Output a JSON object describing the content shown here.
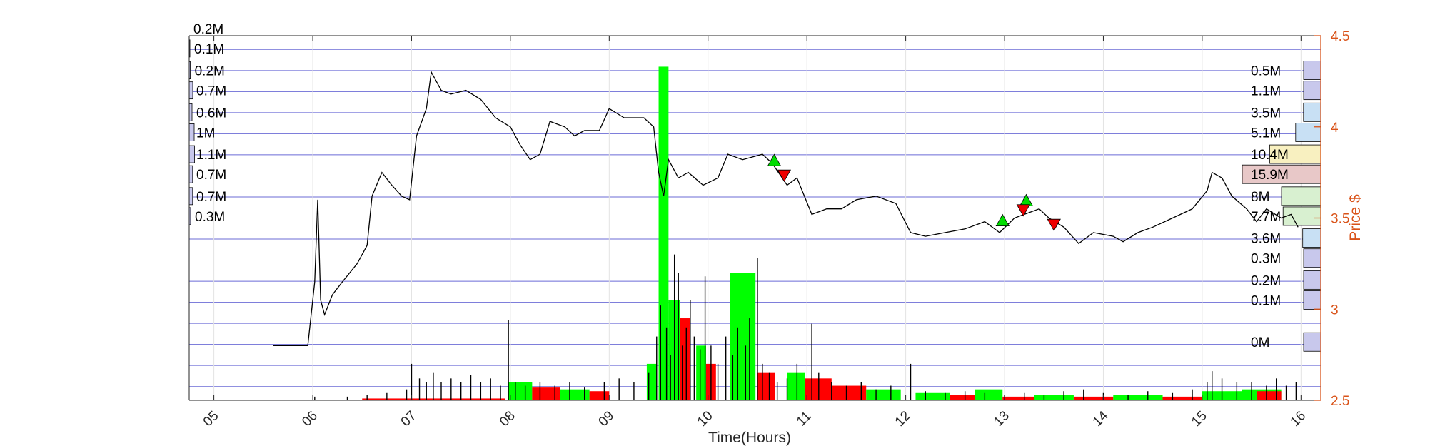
{
  "chart_data": {
    "type": "line",
    "xlabel": "Time(Hours)",
    "ylabel": "Price $",
    "x_ticks": [
      "05",
      "06",
      "07",
      "08",
      "09",
      "10",
      "11",
      "12",
      "13",
      "14",
      "15",
      "16"
    ],
    "x_range": [
      4.75,
      16.2
    ],
    "y_ticks": [
      2.5,
      3,
      3.5,
      4,
      4.5
    ],
    "y_range": [
      2.5,
      4.5
    ],
    "grid": true,
    "colors": {
      "price_axis": "#d95319",
      "price_line": "#000000",
      "buy_volume": "#00ff00",
      "sell_volume": "#ff0000",
      "grid": "#6b6bd6"
    },
    "price_series": [
      [
        5.6,
        2.8
      ],
      [
        5.95,
        2.8
      ],
      [
        6.02,
        3.15
      ],
      [
        6.05,
        3.6
      ],
      [
        6.08,
        3.05
      ],
      [
        6.12,
        2.97
      ],
      [
        6.2,
        3.08
      ],
      [
        6.3,
        3.15
      ],
      [
        6.45,
        3.25
      ],
      [
        6.55,
        3.35
      ],
      [
        6.6,
        3.62
      ],
      [
        6.7,
        3.75
      ],
      [
        6.8,
        3.68
      ],
      [
        6.9,
        3.62
      ],
      [
        6.98,
        3.6
      ],
      [
        7.05,
        3.95
      ],
      [
        7.15,
        4.1
      ],
      [
        7.2,
        4.3
      ],
      [
        7.3,
        4.2
      ],
      [
        7.4,
        4.18
      ],
      [
        7.55,
        4.2
      ],
      [
        7.7,
        4.15
      ],
      [
        7.85,
        4.05
      ],
      [
        8.0,
        4.0
      ],
      [
        8.1,
        3.9
      ],
      [
        8.2,
        3.82
      ],
      [
        8.3,
        3.85
      ],
      [
        8.4,
        4.03
      ],
      [
        8.55,
        4.0
      ],
      [
        8.65,
        3.95
      ],
      [
        8.75,
        3.98
      ],
      [
        8.9,
        3.98
      ],
      [
        9.0,
        4.1
      ],
      [
        9.15,
        4.05
      ],
      [
        9.35,
        4.05
      ],
      [
        9.45,
        4.0
      ],
      [
        9.5,
        3.75
      ],
      [
        9.55,
        3.62
      ],
      [
        9.6,
        3.82
      ],
      [
        9.7,
        3.72
      ],
      [
        9.8,
        3.75
      ],
      [
        9.95,
        3.68
      ],
      [
        10.1,
        3.72
      ],
      [
        10.2,
        3.85
      ],
      [
        10.35,
        3.82
      ],
      [
        10.55,
        3.85
      ],
      [
        10.65,
        3.8
      ],
      [
        10.8,
        3.68
      ],
      [
        10.9,
        3.72
      ],
      [
        11.05,
        3.52
      ],
      [
        11.2,
        3.55
      ],
      [
        11.35,
        3.55
      ],
      [
        11.5,
        3.6
      ],
      [
        11.7,
        3.62
      ],
      [
        11.9,
        3.58
      ],
      [
        12.05,
        3.42
      ],
      [
        12.2,
        3.4
      ],
      [
        12.4,
        3.42
      ],
      [
        12.6,
        3.44
      ],
      [
        12.8,
        3.48
      ],
      [
        12.95,
        3.42
      ],
      [
        13.1,
        3.5
      ],
      [
        13.2,
        3.52
      ],
      [
        13.35,
        3.55
      ],
      [
        13.45,
        3.5
      ],
      [
        13.6,
        3.45
      ],
      [
        13.75,
        3.36
      ],
      [
        13.9,
        3.42
      ],
      [
        14.1,
        3.4
      ],
      [
        14.2,
        3.37
      ],
      [
        14.35,
        3.42
      ],
      [
        14.5,
        3.45
      ],
      [
        14.7,
        3.5
      ],
      [
        14.9,
        3.55
      ],
      [
        15.05,
        3.65
      ],
      [
        15.1,
        3.75
      ],
      [
        15.2,
        3.72
      ],
      [
        15.3,
        3.62
      ],
      [
        15.45,
        3.55
      ],
      [
        15.55,
        3.48
      ],
      [
        15.65,
        3.55
      ],
      [
        15.8,
        3.5
      ],
      [
        15.9,
        3.52
      ],
      [
        15.97,
        3.45
      ]
    ],
    "buy_signals": [
      [
        10.67,
        3.81
      ],
      [
        12.98,
        3.48
      ],
      [
        13.22,
        3.59
      ]
    ],
    "sell_signals": [
      [
        10.77,
        3.74
      ],
      [
        13.19,
        3.55
      ],
      [
        13.5,
        3.47
      ]
    ],
    "volume_blocks": [
      {
        "x": [
          9.38,
          9.48
        ],
        "y": 2.7,
        "side": "buy"
      },
      {
        "x": [
          9.5,
          9.6
        ],
        "y": 4.33,
        "side": "buy"
      },
      {
        "x": [
          9.6,
          9.72
        ],
        "y": 3.05,
        "side": "buy"
      },
      {
        "x": [
          9.72,
          9.82
        ],
        "y": 2.95,
        "side": "sell"
      },
      {
        "x": [
          9.88,
          9.98
        ],
        "y": 2.8,
        "side": "buy"
      },
      {
        "x": [
          9.98,
          10.08
        ],
        "y": 2.7,
        "side": "sell"
      },
      {
        "x": [
          10.22,
          10.48
        ],
        "y": 3.2,
        "side": "buy"
      },
      {
        "x": [
          10.5,
          10.68
        ],
        "y": 2.65,
        "side": "sell"
      },
      {
        "x": [
          10.8,
          10.98
        ],
        "y": 2.65,
        "side": "buy"
      },
      {
        "x": [
          10.98,
          11.25
        ],
        "y": 2.62,
        "side": "sell"
      },
      {
        "x": [
          11.25,
          11.6
        ],
        "y": 2.58,
        "side": "sell"
      },
      {
        "x": [
          11.6,
          11.95
        ],
        "y": 2.56,
        "side": "buy"
      },
      {
        "x": [
          7.98,
          8.22
        ],
        "y": 2.6,
        "side": "buy"
      },
      {
        "x": [
          8.22,
          8.5
        ],
        "y": 2.57,
        "side": "sell"
      },
      {
        "x": [
          8.5,
          8.8
        ],
        "y": 2.56,
        "side": "buy"
      },
      {
        "x": [
          8.8,
          9.0
        ],
        "y": 2.55,
        "side": "sell"
      },
      {
        "x": [
          12.1,
          12.45
        ],
        "y": 2.54,
        "side": "buy"
      },
      {
        "x": [
          12.45,
          12.7
        ],
        "y": 2.53,
        "side": "sell"
      },
      {
        "x": [
          12.7,
          12.98
        ],
        "y": 2.56,
        "side": "buy"
      },
      {
        "x": [
          12.98,
          13.3
        ],
        "y": 2.52,
        "side": "sell"
      },
      {
        "x": [
          13.3,
          13.7
        ],
        "y": 2.53,
        "side": "buy"
      },
      {
        "x": [
          13.7,
          14.1
        ],
        "y": 2.52,
        "side": "sell"
      },
      {
        "x": [
          14.1,
          14.6
        ],
        "y": 2.53,
        "side": "buy"
      },
      {
        "x": [
          14.6,
          15.0
        ],
        "y": 2.52,
        "side": "sell"
      },
      {
        "x": [
          15.0,
          15.4
        ],
        "y": 2.55,
        "side": "buy"
      },
      {
        "x": [
          15.4,
          15.8
        ],
        "y": 2.56,
        "side": "buy"
      },
      {
        "x": [
          15.55,
          15.8
        ],
        "y": 2.55,
        "side": "sell"
      },
      {
        "x": [
          6.5,
          7.0
        ],
        "y": 2.51,
        "side": "sell"
      },
      {
        "x": [
          7.0,
          7.95
        ],
        "y": 2.51,
        "side": "sell"
      }
    ],
    "volume_spikes": [
      [
        6.02,
        2.52
      ],
      [
        6.35,
        2.52
      ],
      [
        6.55,
        2.53
      ],
      [
        6.75,
        2.54
      ],
      [
        6.95,
        2.56
      ],
      [
        7.0,
        2.7
      ],
      [
        7.08,
        2.62
      ],
      [
        7.15,
        2.6
      ],
      [
        7.22,
        2.65
      ],
      [
        7.3,
        2.6
      ],
      [
        7.4,
        2.62
      ],
      [
        7.5,
        2.6
      ],
      [
        7.6,
        2.64
      ],
      [
        7.7,
        2.6
      ],
      [
        7.8,
        2.62
      ],
      [
        7.9,
        2.58
      ],
      [
        7.98,
        2.94
      ],
      [
        8.05,
        2.6
      ],
      [
        8.15,
        2.58
      ],
      [
        8.3,
        2.6
      ],
      [
        8.45,
        2.58
      ],
      [
        8.6,
        2.6
      ],
      [
        8.75,
        2.57
      ],
      [
        8.95,
        2.6
      ],
      [
        9.1,
        2.62
      ],
      [
        9.25,
        2.6
      ],
      [
        9.4,
        2.65
      ],
      [
        9.48,
        2.85
      ],
      [
        9.52,
        3.02
      ],
      [
        9.58,
        2.9
      ],
      [
        9.62,
        2.75
      ],
      [
        9.66,
        3.3
      ],
      [
        9.7,
        3.2
      ],
      [
        9.74,
        2.8
      ],
      [
        9.78,
        2.9
      ],
      [
        9.82,
        3.05
      ],
      [
        9.86,
        2.85
      ],
      [
        9.92,
        2.78
      ],
      [
        9.97,
        3.18
      ],
      [
        10.03,
        2.8
      ],
      [
        10.1,
        2.7
      ],
      [
        10.18,
        2.85
      ],
      [
        10.25,
        2.75
      ],
      [
        10.3,
        2.9
      ],
      [
        10.38,
        2.8
      ],
      [
        10.42,
        2.95
      ],
      [
        10.5,
        3.28
      ],
      [
        10.55,
        2.7
      ],
      [
        10.62,
        2.65
      ],
      [
        10.7,
        2.6
      ],
      [
        10.8,
        2.62
      ],
      [
        10.9,
        2.7
      ],
      [
        11.05,
        2.92
      ],
      [
        11.12,
        2.65
      ],
      [
        11.25,
        2.6
      ],
      [
        11.4,
        2.58
      ],
      [
        11.55,
        2.6
      ],
      [
        11.7,
        2.56
      ],
      [
        11.85,
        2.58
      ],
      [
        12.05,
        2.7
      ],
      [
        12.2,
        2.55
      ],
      [
        12.4,
        2.54
      ],
      [
        12.6,
        2.55
      ],
      [
        12.8,
        2.54
      ],
      [
        13.0,
        2.53
      ],
      [
        13.2,
        2.54
      ],
      [
        13.4,
        2.53
      ],
      [
        13.6,
        2.55
      ],
      [
        13.8,
        2.56
      ],
      [
        14.0,
        2.54
      ],
      [
        14.25,
        2.53
      ],
      [
        14.45,
        2.55
      ],
      [
        14.7,
        2.54
      ],
      [
        14.9,
        2.56
      ],
      [
        15.05,
        2.6
      ],
      [
        15.1,
        2.66
      ],
      [
        15.2,
        2.62
      ],
      [
        15.35,
        2.6
      ],
      [
        15.5,
        2.6
      ],
      [
        15.65,
        2.58
      ],
      [
        15.75,
        2.62
      ],
      [
        15.85,
        2.58
      ],
      [
        15.95,
        2.6
      ]
    ],
    "volume_profile_left": [
      {
        "label": "0.2M",
        "y": 4.54,
        "bar": 0.0
      },
      {
        "label": "0.1M",
        "y": 4.43,
        "bar": 0.05
      },
      {
        "label": "0.2M",
        "y": 4.31,
        "bar": 0.08
      },
      {
        "label": "0.7M",
        "y": 4.2,
        "bar": 0.25
      },
      {
        "label": "0.6M",
        "y": 4.08,
        "bar": 0.2
      },
      {
        "label": "1M",
        "y": 3.97,
        "bar": 0.35
      },
      {
        "label": "1.1M",
        "y": 3.85,
        "bar": 0.38
      },
      {
        "label": "0.7M",
        "y": 3.74,
        "bar": 0.24
      },
      {
        "label": "0.7M",
        "y": 3.62,
        "bar": 0.24
      },
      {
        "label": "0.3M",
        "y": 3.51,
        "bar": 0.1
      }
    ],
    "volume_profile_right": [
      {
        "label": "0.5M",
        "y": 4.31,
        "bar": 0.03,
        "color": "#c8c8ec"
      },
      {
        "label": "1.1M",
        "y": 4.2,
        "bar": 0.07,
        "color": "#c8c8ec"
      },
      {
        "label": "3.5M",
        "y": 4.08,
        "bar": 0.22,
        "color": "#c8e0f4"
      },
      {
        "label": "5.1M",
        "y": 3.97,
        "bar": 0.32,
        "color": "#c8e0f4"
      },
      {
        "label": "10.4M",
        "y": 3.85,
        "bar": 0.65,
        "color": "#f8f0c0"
      },
      {
        "label": "15.9M",
        "y": 3.74,
        "bar": 1.0,
        "color": "#e8c8c8"
      },
      {
        "label": "8M",
        "y": 3.62,
        "bar": 0.5,
        "color": "#d8f0d0"
      },
      {
        "label": "7.7M",
        "y": 3.51,
        "bar": 0.48,
        "color": "#d8f0d0"
      },
      {
        "label": "3.6M",
        "y": 3.39,
        "bar": 0.23,
        "color": "#c8e0f4"
      },
      {
        "label": "0.3M",
        "y": 3.28,
        "bar": 0.02,
        "color": "#c8c8ec"
      },
      {
        "label": "0.2M",
        "y": 3.16,
        "bar": 0.015,
        "color": "#c8c8ec"
      },
      {
        "label": "0.1M",
        "y": 3.05,
        "bar": 0.01,
        "color": "#c8c8ec"
      },
      {
        "label": "0M",
        "y": 2.82,
        "bar": 0.0,
        "color": "#c8c8ec"
      }
    ]
  }
}
